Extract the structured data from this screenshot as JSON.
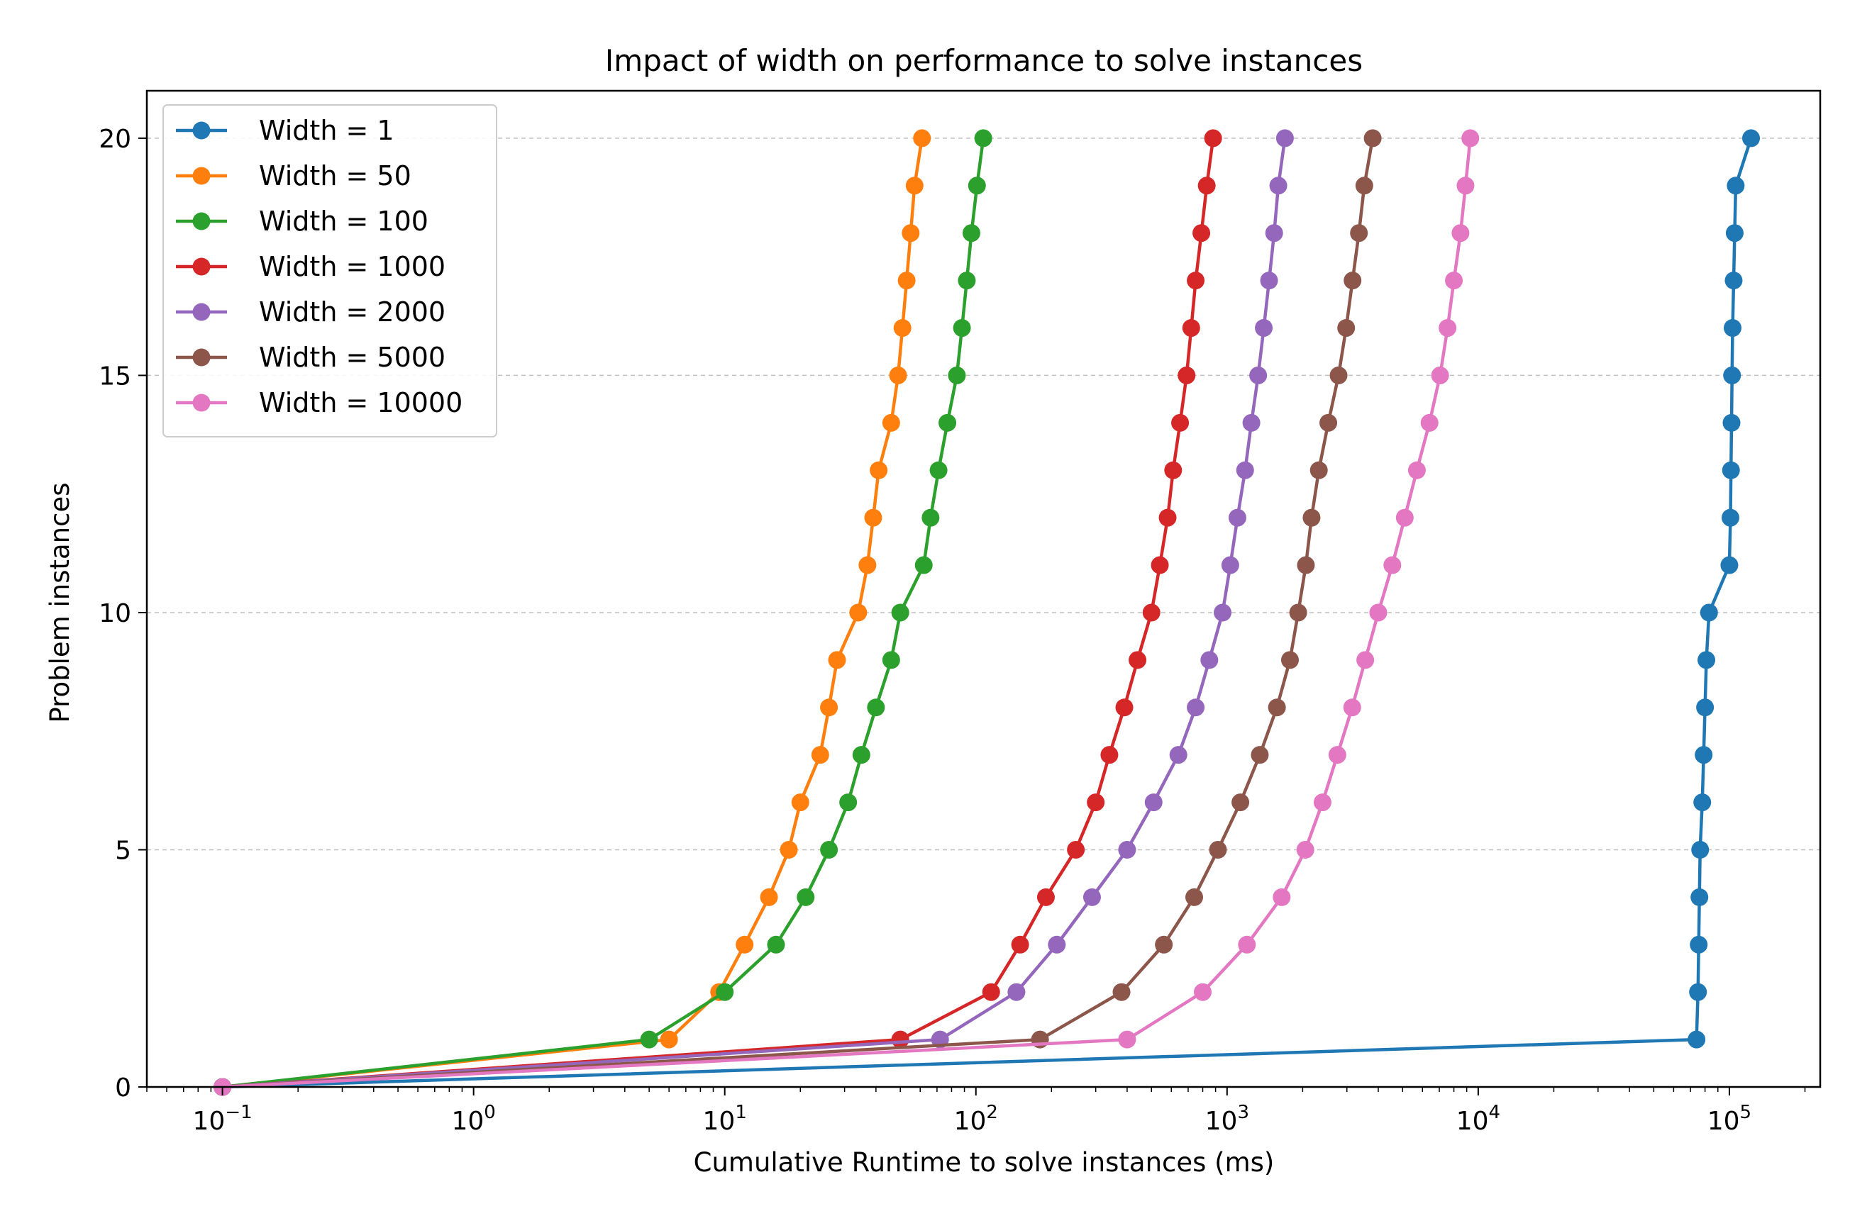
{
  "chart_data": {
    "type": "line",
    "title": "Impact of width on performance to solve instances",
    "xlabel": "Cumulative Runtime to solve instances (ms)",
    "ylabel": "Problem instances",
    "xscale": "log",
    "xlim": [
      0.05,
      230000
    ],
    "ylim": [
      0,
      21
    ],
    "grid": "y-dashed",
    "legend_position": "top-left",
    "x_ticks": [
      {
        "base": "10",
        "exp": "−1",
        "value": 0.1
      },
      {
        "base": "10",
        "exp": "0",
        "value": 1
      },
      {
        "base": "10",
        "exp": "1",
        "value": 10
      },
      {
        "base": "10",
        "exp": "2",
        "value": 100
      },
      {
        "base": "10",
        "exp": "3",
        "value": 1000
      },
      {
        "base": "10",
        "exp": "4",
        "value": 10000
      },
      {
        "base": "10",
        "exp": "5",
        "value": 100000
      }
    ],
    "y_ticks": [
      {
        "label": "0",
        "value": 0
      },
      {
        "label": "5",
        "value": 5
      },
      {
        "label": "10",
        "value": 10
      },
      {
        "label": "15",
        "value": 15
      },
      {
        "label": "20",
        "value": 20
      }
    ],
    "y": [
      0,
      1,
      2,
      3,
      4,
      5,
      6,
      7,
      8,
      9,
      10,
      11,
      12,
      13,
      14,
      15,
      16,
      17,
      18,
      19,
      20
    ],
    "series": [
      {
        "name": "Width = 1",
        "color": "#1f77b4",
        "x": [
          0.1,
          74000,
          75000,
          75500,
          76000,
          76500,
          78000,
          79000,
          80000,
          81000,
          83000,
          100000,
          101000,
          101500,
          102000,
          102500,
          103000,
          104000,
          105000,
          106000,
          122000
        ]
      },
      {
        "name": "Width = 50",
        "color": "#ff7f0e",
        "x": [
          0.1,
          6,
          9.5,
          12,
          15,
          18,
          20,
          24,
          26,
          28,
          34,
          37,
          39,
          41,
          46,
          49,
          51,
          53,
          55,
          57,
          61
        ]
      },
      {
        "name": "Width = 100",
        "color": "#2ca02c",
        "x": [
          0.1,
          5,
          10,
          16,
          21,
          26,
          31,
          35,
          40,
          46,
          50,
          62,
          66,
          71,
          77,
          84,
          88,
          92,
          96,
          101,
          107
        ]
      },
      {
        "name": "Width = 1000",
        "color": "#d62728",
        "x": [
          0.1,
          50,
          115,
          150,
          190,
          250,
          300,
          340,
          390,
          440,
          500,
          540,
          580,
          610,
          650,
          690,
          720,
          750,
          790,
          830,
          880
        ]
      },
      {
        "name": "Width = 2000",
        "color": "#9467bd",
        "x": [
          0.1,
          72,
          145,
          210,
          290,
          400,
          510,
          640,
          750,
          850,
          960,
          1030,
          1100,
          1180,
          1250,
          1330,
          1400,
          1470,
          1540,
          1600,
          1700
        ]
      },
      {
        "name": "Width = 5000",
        "color": "#8c564b",
        "x": [
          0.1,
          180,
          380,
          560,
          740,
          920,
          1130,
          1350,
          1580,
          1780,
          1920,
          2060,
          2170,
          2320,
          2530,
          2780,
          2980,
          3160,
          3350,
          3520,
          3800
        ]
      },
      {
        "name": "Width = 10000",
        "color": "#e377c2",
        "x": [
          0.1,
          400,
          800,
          1200,
          1650,
          2050,
          2400,
          2750,
          3150,
          3550,
          4000,
          4550,
          5100,
          5700,
          6400,
          7050,
          7550,
          8000,
          8500,
          8900,
          9300
        ]
      }
    ]
  }
}
